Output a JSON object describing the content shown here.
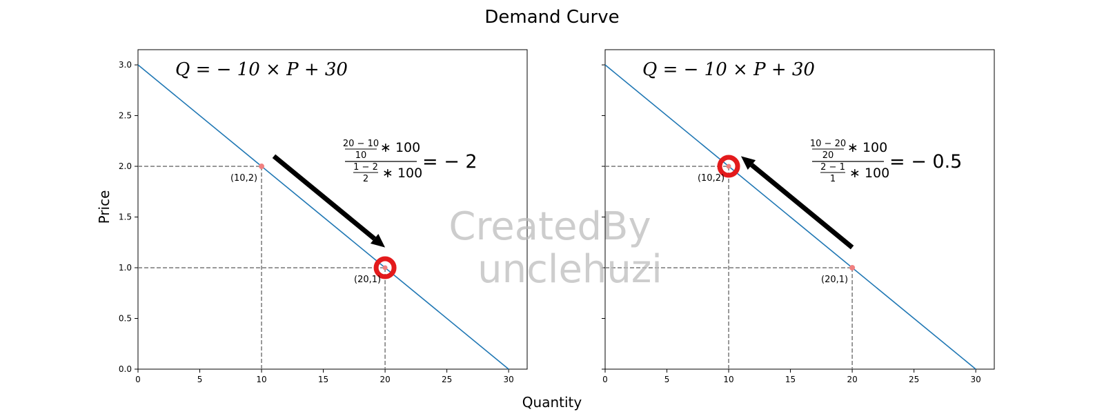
{
  "figure": {
    "title": "Demand Curve",
    "xlabel": "Quantity",
    "ylabel": "Price",
    "watermark": [
      "CreatedBy",
      "unclehuzi"
    ]
  },
  "colors": {
    "line": "#1f77b4",
    "guide": "#808080",
    "marker": "#e31a1c",
    "point": "#f08080",
    "arrow": "#000000"
  },
  "chart_data": [
    {
      "type": "line",
      "equation": "Q = − 10 × P + 30",
      "x": [
        0,
        30
      ],
      "y": [
        3,
        0
      ],
      "xlim": [
        0,
        31.5
      ],
      "ylim": [
        0,
        3.15
      ],
      "xticks": [
        0,
        5,
        10,
        15,
        20,
        25,
        30
      ],
      "yticks": [
        0.0,
        0.5,
        1.0,
        1.5,
        2.0,
        2.5,
        3.0
      ],
      "points": [
        {
          "x": 10,
          "y": 2,
          "label": "(10,2)",
          "highlight": false
        },
        {
          "x": 20,
          "y": 1,
          "label": "(20,1)",
          "highlight": true
        }
      ],
      "arrow": {
        "from": [
          11,
          2.1
        ],
        "to": [
          20,
          1.2
        ]
      },
      "elasticity": {
        "num_top": "20 − 10",
        "num_bottom": "10",
        "den_top": "1 − 2",
        "den_bottom": "2",
        "times": "∗ 100",
        "result": "= − 2"
      }
    },
    {
      "type": "line",
      "equation": "Q = − 10 × P + 30",
      "x": [
        0,
        30
      ],
      "y": [
        3,
        0
      ],
      "xlim": [
        0,
        31.5
      ],
      "ylim": [
        0,
        3.15
      ],
      "xticks": [
        0,
        5,
        10,
        15,
        20,
        25,
        30
      ],
      "yticks": [
        0.0,
        0.5,
        1.0,
        1.5,
        2.0,
        2.5,
        3.0
      ],
      "points": [
        {
          "x": 10,
          "y": 2,
          "label": "(10,2)",
          "highlight": true
        },
        {
          "x": 20,
          "y": 1,
          "label": "(20,1)",
          "highlight": false
        }
      ],
      "arrow": {
        "from": [
          20,
          1.2
        ],
        "to": [
          11,
          2.1
        ]
      },
      "elasticity": {
        "num_top": "10 − 20",
        "num_bottom": "20",
        "den_top": "2 − 1",
        "den_bottom": "1",
        "times": "∗ 100",
        "result": "= − 0.5"
      }
    }
  ]
}
